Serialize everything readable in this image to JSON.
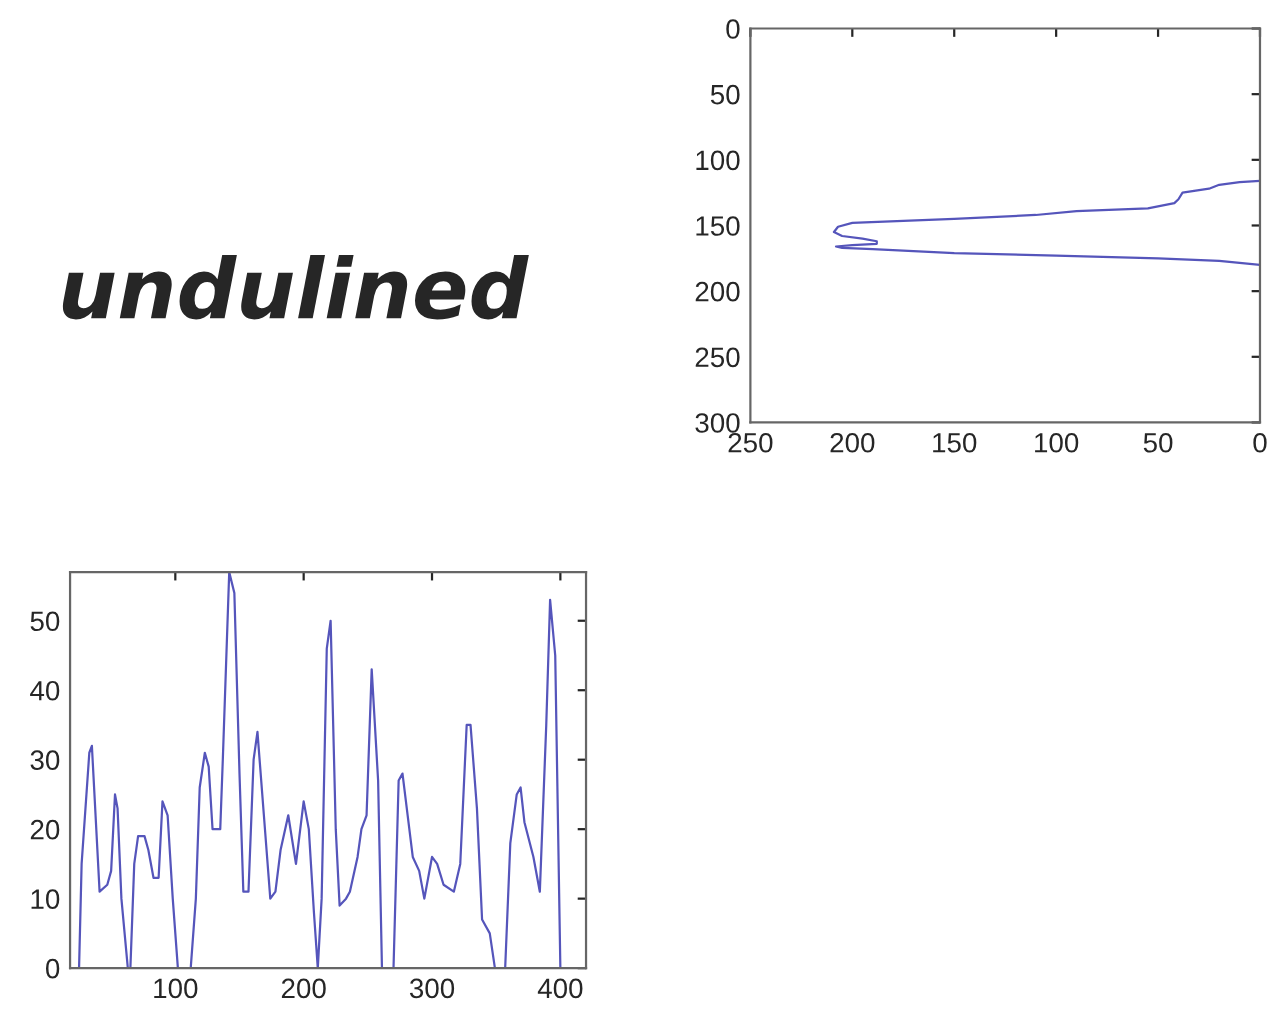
{
  "chart_data": [
    {
      "type": "other",
      "annotations": [
        "undulined"
      ]
    },
    {
      "type": "line",
      "xlim": [
        250,
        0
      ],
      "ylim": [
        300,
        0
      ],
      "xticks": [
        250,
        200,
        150,
        100,
        50,
        0
      ],
      "yticks": [
        0,
        50,
        100,
        150,
        200,
        250,
        300
      ],
      "grid": false,
      "legend": false,
      "series": [
        {
          "color": "#5555bb",
          "x": [
            0,
            10,
            20,
            25,
            38,
            40,
            42,
            55,
            90,
            110,
            150,
            200,
            207,
            209,
            205,
            195,
            188,
            188,
            200,
            208,
            205,
            190,
            150,
            100,
            50,
            20,
            0
          ],
          "values": [
            116,
            117,
            119,
            122,
            125,
            130,
            133,
            137,
            139,
            142,
            145,
            148,
            151,
            155,
            158,
            160,
            162,
            164,
            165,
            166,
            167,
            168,
            171,
            173,
            175,
            177,
            180
          ]
        }
      ]
    },
    {
      "type": "line",
      "xlim": [
        18,
        420
      ],
      "ylim": [
        0,
        57
      ],
      "xticks": [
        100,
        200,
        300,
        400
      ],
      "yticks": [
        0,
        10,
        20,
        30,
        40,
        50
      ],
      "grid": false,
      "legend": false,
      "series": [
        {
          "color": "#5555bb",
          "x": [
            25,
            27,
            33,
            35,
            41,
            47,
            50,
            53,
            55,
            58,
            63,
            65,
            68,
            71,
            76,
            79,
            83,
            87,
            90,
            94,
            98,
            102,
            112,
            116,
            119,
            123,
            126,
            129,
            135,
            137,
            142,
            146,
            150,
            153,
            157,
            161,
            164,
            169,
            174,
            178,
            182,
            188,
            194,
            200,
            204,
            208,
            211,
            214,
            218,
            221,
            225,
            228,
            233,
            236,
            242,
            245,
            249,
            253,
            258,
            261,
            270,
            274,
            277,
            285,
            290,
            294,
            300,
            304,
            309,
            317,
            322,
            327,
            330,
            335,
            339,
            345,
            349,
            357,
            361,
            366,
            369,
            372,
            379,
            384,
            389,
            392,
            396,
            400
          ],
          "values": [
            0,
            15,
            31,
            32,
            11,
            12,
            14,
            25,
            23,
            10,
            0,
            0,
            15,
            19,
            19,
            17,
            13,
            13,
            24,
            22,
            10,
            0,
            0,
            10,
            26,
            31,
            29,
            20,
            20,
            30,
            57,
            54,
            28,
            11,
            11,
            30,
            34,
            22,
            10,
            11,
            17,
            22,
            15,
            24,
            20,
            8,
            0,
            10,
            46,
            50,
            20,
            9,
            10,
            11,
            16,
            20,
            22,
            43,
            27,
            0,
            0,
            27,
            28,
            16,
            14,
            10,
            16,
            15,
            12,
            11,
            15,
            35,
            35,
            23,
            7,
            5,
            0,
            0,
            18,
            25,
            26,
            21,
            16,
            11,
            35,
            53,
            45,
            0
          ]
        }
      ]
    }
  ]
}
